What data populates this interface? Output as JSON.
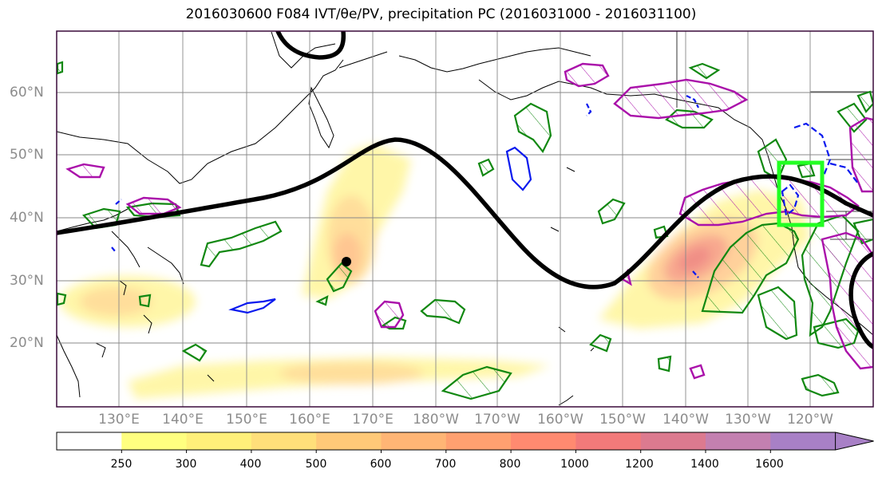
{
  "title": "2016030600 F084 IVT/θe/PV, precipitation PC (2016031000 - 2016031100)",
  "lat_labels": [
    "60°N",
    "50°N",
    "40°N",
    "30°N",
    "20°N"
  ],
  "lon_labels": [
    "130°E",
    "140°E",
    "150°E",
    "160°E",
    "170°E",
    "180°W",
    "170°W",
    "160°W",
    "150°W",
    "140°W",
    "130°W",
    "120°W"
  ],
  "colorbar": {
    "tick_labels": [
      "250",
      "300",
      "400",
      "500",
      "600",
      "700",
      "800",
      "1000",
      "1200",
      "1400",
      "1600"
    ],
    "colors": [
      "#ffffff",
      "#ffff80",
      "#fff07a",
      "#ffdf7a",
      "#ffc978",
      "#ffb575",
      "#ffa070",
      "#ff8a70",
      "#f27a7a",
      "#dc7a8f",
      "#c380b0",
      "#a880c6"
    ]
  },
  "colors": {
    "ivt_fill": "#ffd85a",
    "ivt_core": "#f07a6a",
    "precip_pc": "#118811",
    "pv": "#aa11aa",
    "negative_pc": "#0a1aee",
    "theta_e": "#000000",
    "region_box": "#22ff22"
  }
}
